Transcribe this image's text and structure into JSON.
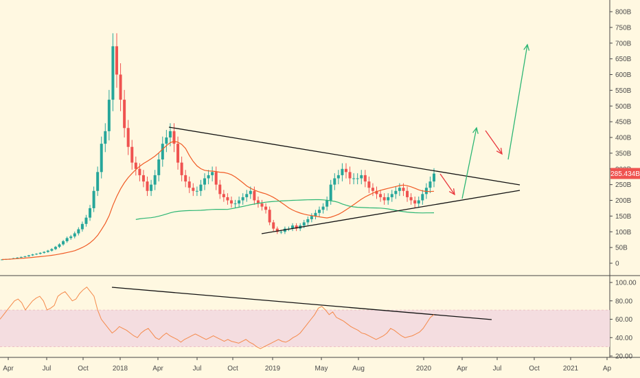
{
  "colors": {
    "background": "#fff8e1",
    "up_candle": "#26a69a",
    "down_candle": "#ef5350",
    "ma_short": "#f05a24",
    "ma_long": "#2bb673",
    "rsi_line": "#f5894a",
    "rsi_band": "#f4dde0",
    "trendline": "#111111",
    "price_badge": "#ef5350",
    "arrow_up": "#2bb673",
    "arrow_down": "#e8363c"
  },
  "chart_data": [
    {
      "type": "candlestick",
      "title": "",
      "x_ticks": [
        "Apr",
        "Jul",
        "Oct",
        "2018",
        "Apr",
        "Jul",
        "Oct",
        "2019",
        "May",
        "Aug",
        "2020",
        "Apr",
        "Jul",
        "Oct",
        "2021",
        "Ap"
      ],
      "y_ticks": [
        "0",
        "50B",
        "100B",
        "150B",
        "200B",
        "250B",
        "300B",
        "350B",
        "400B",
        "450B",
        "500B",
        "550B",
        "600B",
        "650B",
        "700B",
        "750B",
        "800B"
      ],
      "ylim": [
        0,
        800
      ],
      "unit": "B",
      "current_value_label": "285.434B",
      "current_value": 285.434,
      "close_series": [
        12,
        13,
        14,
        16,
        18,
        20,
        22,
        25,
        28,
        30,
        33,
        36,
        40,
        45,
        52,
        60,
        70,
        80,
        85,
        95,
        108,
        125,
        145,
        175,
        230,
        290,
        380,
        420,
        520,
        690,
        600,
        520,
        430,
        370,
        320,
        300,
        280,
        260,
        230,
        250,
        280,
        330,
        380,
        400,
        420,
        380,
        320,
        280,
        260,
        240,
        230,
        230,
        250,
        270,
        280,
        290,
        250,
        220,
        210,
        200,
        190,
        190,
        200,
        210,
        220,
        230,
        200,
        190,
        180,
        170,
        130,
        110,
        100,
        100,
        110,
        110,
        120,
        110,
        120,
        130,
        140,
        150,
        160,
        170,
        180,
        200,
        250,
        270,
        280,
        300,
        290,
        270,
        270,
        270,
        280,
        260,
        240,
        230,
        220,
        210,
        200,
        210,
        220,
        230,
        240,
        230,
        210,
        200,
        190,
        200,
        220,
        240,
        260,
        285
      ]
    },
    {
      "type": "line",
      "title": "",
      "y_ticks": [
        "20.00",
        "40.00",
        "60.00",
        "80.00",
        "100.00"
      ],
      "ylim": [
        20,
        100
      ],
      "band": [
        30,
        70
      ],
      "series": [
        {
          "name": "",
          "values": [
            60,
            65,
            70,
            75,
            80,
            82,
            78,
            70,
            75,
            80,
            83,
            85,
            80,
            70,
            72,
            75,
            85,
            88,
            90,
            85,
            80,
            82,
            88,
            92,
            95,
            90,
            85,
            70,
            60,
            55,
            50,
            45,
            48,
            52,
            50,
            48,
            45,
            42,
            40,
            45,
            48,
            50,
            45,
            40,
            38,
            42,
            45,
            42,
            40,
            38,
            35,
            38,
            40,
            42,
            44,
            42,
            40,
            38,
            40,
            42,
            40,
            38,
            36,
            38,
            36,
            35,
            34,
            36,
            38,
            35,
            33,
            30,
            28,
            30,
            32,
            34,
            36,
            38,
            36,
            35,
            37,
            40,
            42,
            45,
            50,
            55,
            60,
            65,
            72,
            74,
            70,
            65,
            68,
            62,
            60,
            58,
            55,
            52,
            50,
            48,
            45,
            44,
            42,
            40,
            38,
            40,
            42,
            45,
            50,
            48,
            45,
            42,
            40,
            41,
            42,
            44,
            46,
            50,
            56,
            62,
            65
          ]
        }
      ]
    }
  ]
}
